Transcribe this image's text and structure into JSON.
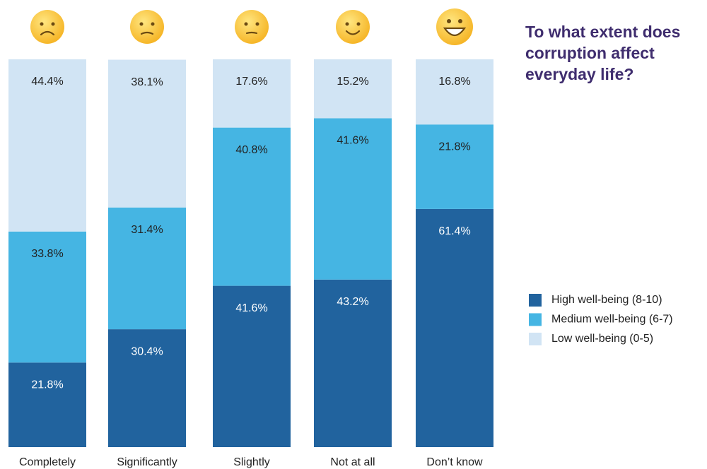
{
  "chart_data": {
    "type": "stacked_bar",
    "title": "To what extent does corruption affect everyday life?",
    "categories": [
      "Completely",
      "Significantly",
      "Slightly",
      "Not at all",
      "Don’t know"
    ],
    "ylim": [
      0,
      100
    ],
    "series": [
      {
        "name": "High well-being (8-10)",
        "color": "#21639e",
        "values": [
          21.8,
          30.4,
          41.6,
          43.2,
          61.4
        ],
        "value_labels": [
          "21.8%",
          "30.4%",
          "41.6%",
          "43.2%",
          "61.4%"
        ]
      },
      {
        "name": "Medium well-being (6-7)",
        "color": "#45b5e3",
        "values": [
          33.8,
          31.4,
          40.8,
          41.6,
          21.8
        ],
        "value_labels": [
          "33.8%",
          "31.4%",
          "40.8%",
          "41.6%",
          "21.8%"
        ]
      },
      {
        "name": "Low well-being (0-5)",
        "color": "#d1e4f4",
        "values": [
          44.4,
          38.1,
          17.6,
          15.2,
          16.8
        ],
        "value_labels": [
          "44.4%",
          "38.1%",
          "17.6%",
          "15.2%",
          "16.8%"
        ]
      }
    ]
  }
}
